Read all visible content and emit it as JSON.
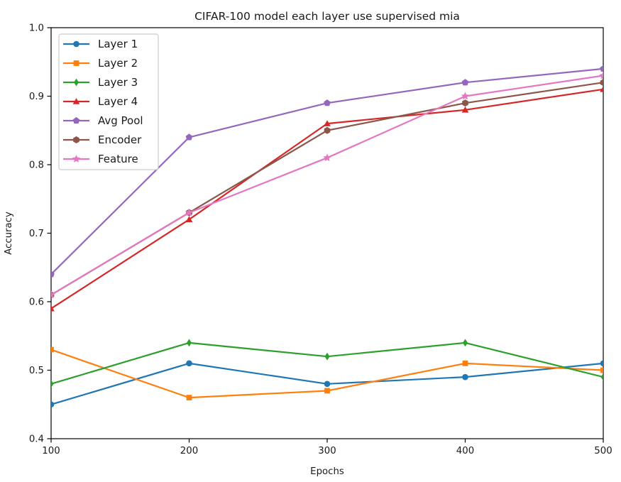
{
  "figure": {
    "title": "CIFAR-100 model each layer use supervised mia",
    "xlabel": "Epochs",
    "ylabel": "Accuracy"
  },
  "chart_data": {
    "type": "line",
    "title": "CIFAR-100 model each layer use supervised mia",
    "xlabel": "Epochs",
    "ylabel": "Accuracy",
    "x": [
      100,
      200,
      300,
      400,
      500
    ],
    "xlim": [
      100,
      500
    ],
    "ylim": [
      0.4,
      1.0
    ],
    "xticks": [
      100,
      200,
      300,
      400,
      500
    ],
    "yticks": [
      0.4,
      0.5,
      0.6,
      0.7,
      0.8,
      0.9,
      1.0
    ],
    "grid": false,
    "legend_position": "upper left",
    "series": [
      {
        "name": "Layer 1",
        "color": "#1f77b4",
        "marker": "circle",
        "values": [
          0.45,
          0.51,
          0.48,
          0.49,
          0.51
        ]
      },
      {
        "name": "Layer 2",
        "color": "#ff7f0e",
        "marker": "square",
        "values": [
          0.53,
          0.46,
          0.47,
          0.51,
          0.5
        ]
      },
      {
        "name": "Layer 3",
        "color": "#2ca02c",
        "marker": "diamond",
        "values": [
          0.48,
          0.54,
          0.52,
          0.54,
          0.49
        ]
      },
      {
        "name": "Layer 4",
        "color": "#d62728",
        "marker": "triangle",
        "values": [
          0.59,
          0.72,
          0.86,
          0.88,
          0.91
        ]
      },
      {
        "name": "Avg Pool",
        "color": "#9467bd",
        "marker": "pentagon",
        "values": [
          0.64,
          0.84,
          0.89,
          0.92,
          0.94
        ]
      },
      {
        "name": "Encoder",
        "color": "#8c564b",
        "marker": "hexagon",
        "values": [
          0.61,
          0.73,
          0.85,
          0.89,
          0.92
        ]
      },
      {
        "name": "Feature",
        "color": "#e377c2",
        "marker": "star",
        "values": [
          0.61,
          0.73,
          0.81,
          0.9,
          0.93
        ]
      }
    ],
    "axis_color": "#000000",
    "legend_border_color": "#cccccc"
  }
}
